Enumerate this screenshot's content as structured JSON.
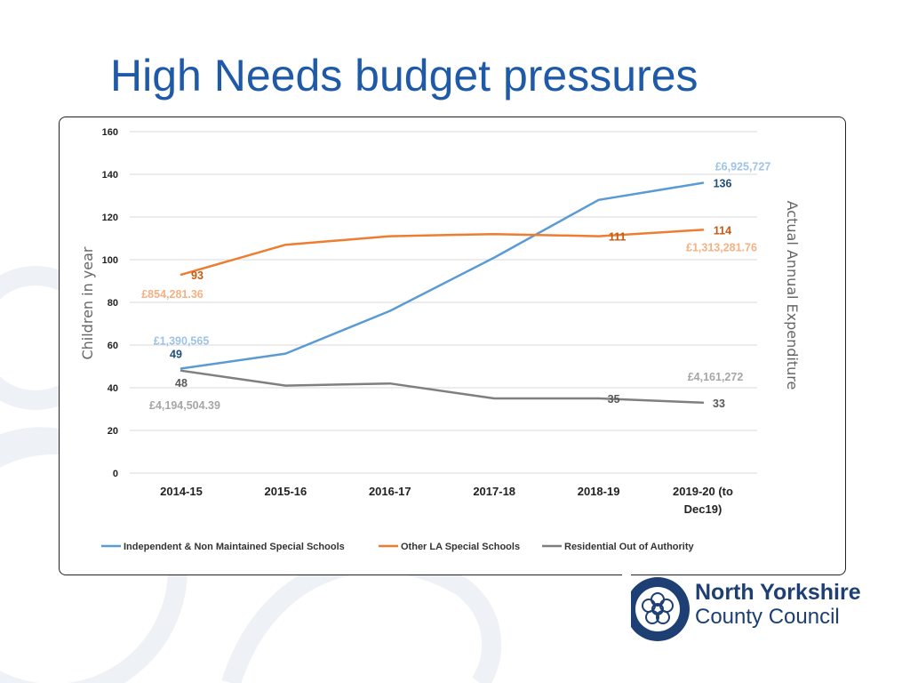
{
  "slide": {
    "title": "High Needs budget pressures"
  },
  "logo": {
    "line1": "North Yorkshire",
    "line2": "County Council"
  },
  "colors": {
    "title": "#1f5aa8",
    "independent": "#5b9bd5",
    "other_la": "#ed7d31",
    "residential": "#7f7f7f",
    "independent_light": "#9dc3e6",
    "other_la_light": "#f4b183",
    "residential_light": "#a6a6a6",
    "independent_dark": "#1f4e79",
    "other_la_dark": "#c55a11",
    "residential_dark": "#595959"
  },
  "chart_data": {
    "type": "line",
    "title": "",
    "xlabel": "",
    "ylabel": "Children in year",
    "y2label": "Actual Annual Expenditure",
    "ylim": [
      0,
      160
    ],
    "yticks": [
      0,
      20,
      40,
      60,
      80,
      100,
      120,
      140,
      160
    ],
    "grid": true,
    "legend_position": "bottom",
    "categories": [
      "2014-15",
      "2015-16",
      "2016-17",
      "2017-18",
      "2018-19",
      "2019-20 (to Dec19)"
    ],
    "category_lines": [
      [
        "2014-15"
      ],
      [
        "2015-16"
      ],
      [
        "2016-17"
      ],
      [
        "2017-18"
      ],
      [
        "2018-19"
      ],
      [
        "2019-20 (to",
        "Dec19)"
      ]
    ],
    "series": [
      {
        "name": "Independent & Non Maintained Special Schools",
        "values": [
          49,
          56,
          76,
          101,
          128,
          136
        ],
        "color_key": "independent"
      },
      {
        "name": "Other LA Special Schools",
        "values": [
          93,
          107,
          111,
          112,
          111,
          114
        ],
        "color_key": "other_la"
      },
      {
        "name": "Residential Out of Authority",
        "values": [
          48,
          41,
          42,
          35,
          35,
          33
        ],
        "color_key": "residential"
      }
    ],
    "annotations": [
      {
        "text": "49",
        "series": 0,
        "index": 0,
        "kind": "count"
      },
      {
        "text": "£1,390,565",
        "series": 0,
        "index": 0,
        "kind": "spend"
      },
      {
        "text": "136",
        "series": 0,
        "index": 5,
        "kind": "count"
      },
      {
        "text": "£6,925,727",
        "series": 0,
        "index": 5,
        "kind": "spend"
      },
      {
        "text": "93",
        "series": 1,
        "index": 0,
        "kind": "count"
      },
      {
        "text": "£854,281.36",
        "series": 1,
        "index": 0,
        "kind": "spend"
      },
      {
        "text": "111",
        "series": 1,
        "index": 4,
        "kind": "count"
      },
      {
        "text": "114",
        "series": 1,
        "index": 5,
        "kind": "count"
      },
      {
        "text": "£1,313,281.76",
        "series": 1,
        "index": 5,
        "kind": "spend"
      },
      {
        "text": "48",
        "series": 2,
        "index": 0,
        "kind": "count"
      },
      {
        "text": "£4,194,504.39",
        "series": 2,
        "index": 0,
        "kind": "spend"
      },
      {
        "text": "35",
        "series": 2,
        "index": 4,
        "kind": "count"
      },
      {
        "text": "33",
        "series": 2,
        "index": 5,
        "kind": "count"
      },
      {
        "text": "£4,161,272",
        "series": 2,
        "index": 5,
        "kind": "spend"
      }
    ]
  }
}
